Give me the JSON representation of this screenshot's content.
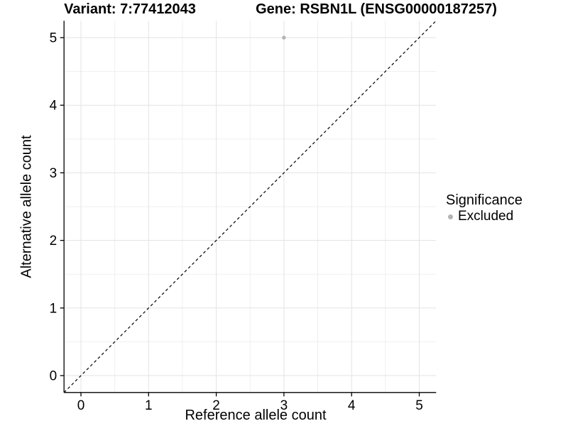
{
  "chart_data": {
    "type": "scatter",
    "title_left": "Variant: 7:77412043",
    "title_right": "Gene: RSBN1L (ENSG00000187257)",
    "xlabel": "Reference allele count",
    "ylabel": "Alternative allele count",
    "xticks": [
      0,
      1,
      2,
      3,
      4,
      5
    ],
    "yticks": [
      0,
      1,
      2,
      3,
      4,
      5
    ],
    "xlim": [
      -0.25,
      5.25
    ],
    "ylim": [
      -0.25,
      5.25
    ],
    "grid": {
      "major": true,
      "minor": true
    },
    "points": [
      {
        "x": 3,
        "y": 5,
        "significance": "Excluded"
      }
    ],
    "reference_line": {
      "slope": 1,
      "intercept": 0,
      "style": "dashed",
      "color": "#000000"
    },
    "legend": {
      "title": "Significance",
      "position": "right",
      "entries": [
        {
          "label": "Excluded",
          "color": "#b3b3b3",
          "marker": "circle"
        }
      ]
    },
    "colors": {
      "point": "#b3b3b3",
      "grid_major": "#e3e3e3",
      "grid_minor": "#efefef",
      "axis_line": "#000000",
      "tick_text": "#000000",
      "background": "#ffffff"
    }
  }
}
